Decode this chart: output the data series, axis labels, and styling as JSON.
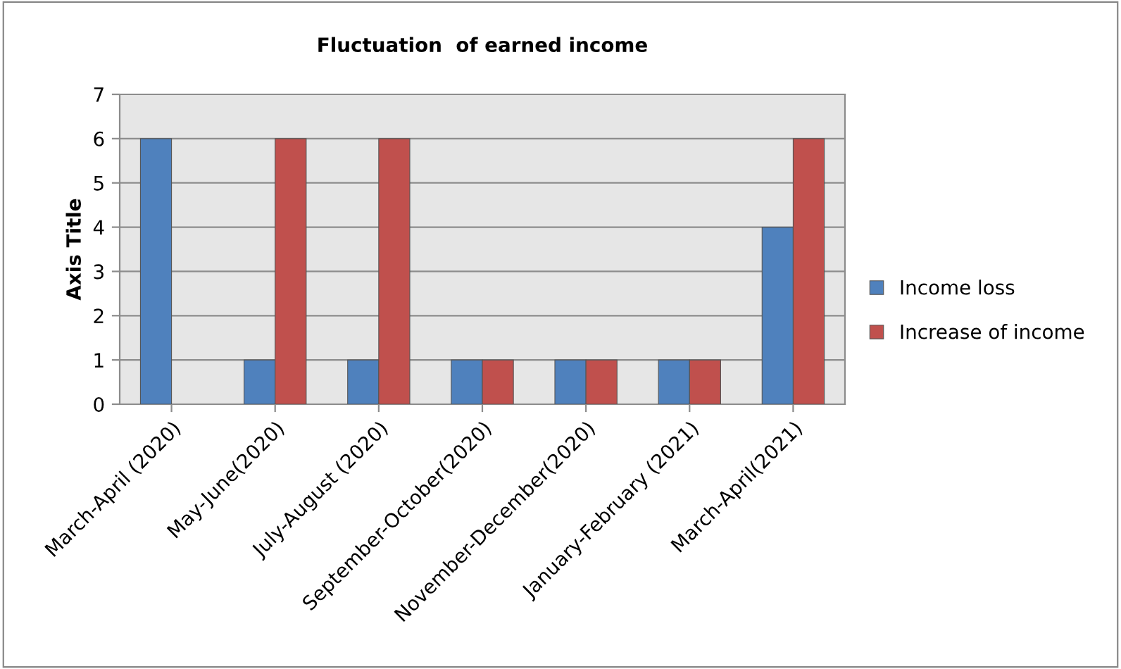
{
  "chart_data": {
    "type": "bar",
    "title": "Fluctuation  of earned income",
    "ylabel": "Axis Title",
    "categories": [
      "March-April (2020)",
      "May-June(2020)",
      "July-August (2020)",
      "September-October(2020)",
      "November-December(2020)",
      "January-February (2021)",
      "March-April(2021)"
    ],
    "series": [
      {
        "name": "Income loss",
        "color": "#4f81bd",
        "values": [
          6,
          1,
          1,
          1,
          1,
          1,
          4
        ]
      },
      {
        "name": "Increase of income",
        "color": "#c0504d",
        "values": [
          null,
          6,
          6,
          1,
          1,
          1,
          6
        ]
      }
    ],
    "ylim": [
      0,
      7
    ],
    "yticks": [
      0,
      1,
      2,
      3,
      4,
      5,
      6,
      7
    ],
    "grid": "y",
    "legend": "right"
  }
}
